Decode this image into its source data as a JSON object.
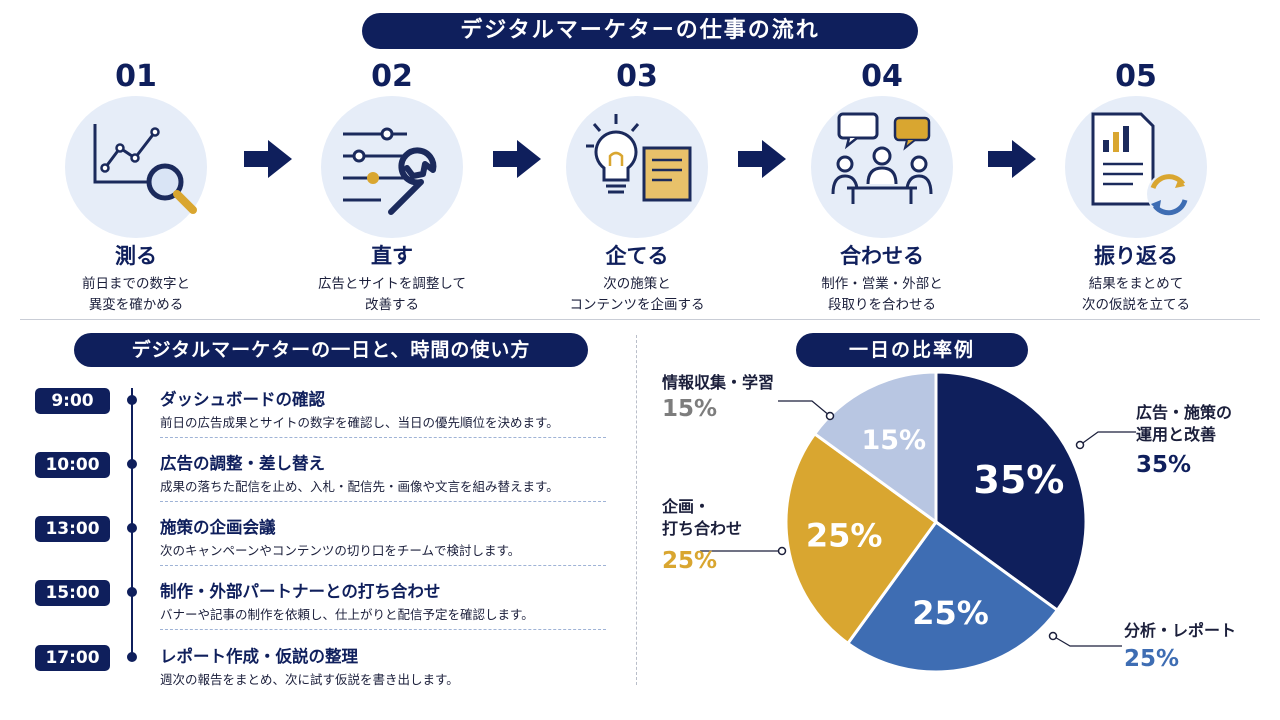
{
  "title": "デジタルマーケターの仕事の流れ",
  "steps": [
    {
      "num": "01",
      "verb": "測る",
      "desc1": "前日までの数字と",
      "desc2": "異変を確かめる",
      "icon": "chart-magnifier-icon"
    },
    {
      "num": "02",
      "verb": "直す",
      "desc1": "広告とサイトを調整して",
      "desc2": "改善する",
      "icon": "sliders-wrench-icon"
    },
    {
      "num": "03",
      "verb": "企てる",
      "desc1": "次の施策と",
      "desc2": "コンテンツを企画する",
      "icon": "lightbulb-note-icon"
    },
    {
      "num": "04",
      "verb": "合わせる",
      "desc1": "制作・営業・外部と",
      "desc2": "段取りを合わせる",
      "icon": "meeting-icon"
    },
    {
      "num": "05",
      "verb": "振り返る",
      "desc1": "結果をまとめて",
      "desc2": "次の仮説を立てる",
      "icon": "report-cycle-icon"
    }
  ],
  "day": {
    "title": "デジタルマーケターの一日と、時間の使い方",
    "schedule": [
      {
        "time": "9:00",
        "title": "ダッシュボードの確認",
        "desc": "前日の広告成果とサイトの数字を確認し、当日の優先順位を決めます。"
      },
      {
        "time": "10:00",
        "title": "広告の調整・差し替え",
        "desc": "成果の落ちた配信を止め、入札・配信先・画像や文言を組み替えます。"
      },
      {
        "time": "13:00",
        "title": "施策の企画会議",
        "desc": "次のキャンペーンやコンテンツの切り口をチームで検討します。"
      },
      {
        "time": "15:00",
        "title": "制作・外部パートナーとの打ち合わせ",
        "desc": "バナーや記事の制作を依頼し、仕上がりと配信予定を確認します。"
      },
      {
        "time": "17:00",
        "title": "レポート作成・仮説の整理",
        "desc": "週次の報告をまとめ、次に試す仮説を書き出します。"
      }
    ]
  },
  "ratio": {
    "title": "一日の比率例",
    "slices": [
      {
        "label1": "広告・施策の",
        "label2": "運用と改善",
        "value": 35,
        "pct": "35%",
        "color": "#0f1f5c",
        "label_color": "#0f1f5c"
      },
      {
        "label1": "分析・レポート",
        "label2": "",
        "value": 25,
        "pct": "25%",
        "color": "#3e6db3",
        "label_color": "#3e6db3"
      },
      {
        "label1": "企画・",
        "label2": "打ち合わせ",
        "value": 25,
        "pct": "25%",
        "color": "#d9a630",
        "label_color": "#d9a630"
      },
      {
        "label1": "情報収集・学習",
        "label2": "",
        "value": 15,
        "pct": "15%",
        "color": "#b8c6e2",
        "label_color": "#7d7d7d"
      }
    ]
  },
  "colors": {
    "navy": "#0f1f5c",
    "light_blue_bg": "#e6edf8",
    "gold": "#d9a630"
  }
}
